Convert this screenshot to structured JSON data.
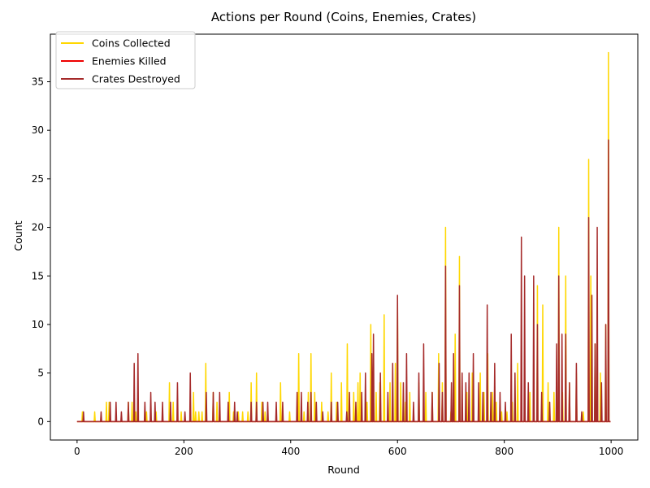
{
  "chart_data": {
    "type": "line",
    "title": "Actions per Round (Coins, Enemies, Crates)",
    "xlabel": "Round",
    "ylabel": "Count",
    "xlim": [
      -50,
      1050
    ],
    "ylim": [
      -1.9,
      39.9
    ],
    "xticks": [
      0,
      200,
      400,
      600,
      800,
      1000
    ],
    "yticks": [
      0,
      5,
      10,
      15,
      20,
      25,
      30,
      35
    ],
    "grid": false,
    "legend": "top-left",
    "series": [
      {
        "name": "Coins Collected",
        "color": "#ffd700",
        "spikes": [
          [
            10,
            1
          ],
          [
            33,
            1
          ],
          [
            55,
            2
          ],
          [
            60,
            2
          ],
          [
            96,
            2
          ],
          [
            103,
            2
          ],
          [
            110,
            1
          ],
          [
            130,
            1
          ],
          [
            148,
            1
          ],
          [
            173,
            4
          ],
          [
            180,
            2
          ],
          [
            195,
            1
          ],
          [
            218,
            3
          ],
          [
            222,
            1
          ],
          [
            228,
            1
          ],
          [
            234,
            1
          ],
          [
            241,
            6
          ],
          [
            255,
            3
          ],
          [
            262,
            2
          ],
          [
            285,
            3
          ],
          [
            293,
            1
          ],
          [
            302,
            1
          ],
          [
            310,
            1
          ],
          [
            320,
            1
          ],
          [
            326,
            4
          ],
          [
            336,
            5
          ],
          [
            346,
            2
          ],
          [
            352,
            1
          ],
          [
            381,
            4
          ],
          [
            398,
            1
          ],
          [
            415,
            7
          ],
          [
            425,
            1
          ],
          [
            433,
            3
          ],
          [
            438,
            7
          ],
          [
            445,
            3
          ],
          [
            458,
            2
          ],
          [
            470,
            1
          ],
          [
            476,
            5
          ],
          [
            486,
            2
          ],
          [
            495,
            4
          ],
          [
            506,
            8
          ],
          [
            518,
            3
          ],
          [
            526,
            4
          ],
          [
            530,
            5
          ],
          [
            543,
            2
          ],
          [
            550,
            10
          ],
          [
            560,
            3
          ],
          [
            567,
            4
          ],
          [
            575,
            11
          ],
          [
            586,
            4
          ],
          [
            596,
            6
          ],
          [
            600,
            12
          ],
          [
            606,
            4
          ],
          [
            615,
            2
          ],
          [
            623,
            3
          ],
          [
            640,
            4
          ],
          [
            653,
            3
          ],
          [
            665,
            3
          ],
          [
            677,
            7
          ],
          [
            684,
            4
          ],
          [
            690,
            20
          ],
          [
            700,
            1
          ],
          [
            708,
            9
          ],
          [
            716,
            17
          ],
          [
            730,
            3
          ],
          [
            740,
            5
          ],
          [
            755,
            5
          ],
          [
            762,
            3
          ],
          [
            769,
            7
          ],
          [
            778,
            3
          ],
          [
            785,
            2
          ],
          [
            795,
            1
          ],
          [
            805,
            1
          ],
          [
            815,
            2
          ],
          [
            825,
            6
          ],
          [
            838,
            2
          ],
          [
            848,
            3
          ],
          [
            855,
            3
          ],
          [
            862,
            14
          ],
          [
            872,
            12
          ],
          [
            882,
            4
          ],
          [
            893,
            3
          ],
          [
            902,
            20
          ],
          [
            909,
            3
          ],
          [
            915,
            15
          ],
          [
            922,
            4
          ],
          [
            935,
            5
          ],
          [
            948,
            1
          ],
          [
            958,
            27
          ],
          [
            962,
            15
          ],
          [
            970,
            8
          ],
          [
            974,
            10
          ],
          [
            980,
            5
          ],
          [
            990,
            10
          ],
          [
            995,
            38
          ]
        ]
      },
      {
        "name": "Enemies Killed",
        "color": "#ee0000",
        "spikes": []
      },
      {
        "name": "Crates Destroyed",
        "color": "#a52a2a",
        "spikes": [
          [
            12,
            1
          ],
          [
            45,
            1
          ],
          [
            62,
            2
          ],
          [
            73,
            2
          ],
          [
            83,
            1
          ],
          [
            96,
            2
          ],
          [
            107,
            6
          ],
          [
            114,
            7
          ],
          [
            127,
            2
          ],
          [
            138,
            3
          ],
          [
            146,
            2
          ],
          [
            160,
            2
          ],
          [
            175,
            2
          ],
          [
            188,
            4
          ],
          [
            202,
            1
          ],
          [
            212,
            5
          ],
          [
            242,
            3
          ],
          [
            255,
            3
          ],
          [
            267,
            3
          ],
          [
            283,
            2
          ],
          [
            295,
            2
          ],
          [
            300,
            1
          ],
          [
            326,
            2
          ],
          [
            336,
            2
          ],
          [
            348,
            2
          ],
          [
            357,
            2
          ],
          [
            373,
            2
          ],
          [
            385,
            2
          ],
          [
            412,
            3
          ],
          [
            420,
            3
          ],
          [
            432,
            2
          ],
          [
            438,
            3
          ],
          [
            448,
            2
          ],
          [
            460,
            1
          ],
          [
            476,
            2
          ],
          [
            488,
            2
          ],
          [
            505,
            1
          ],
          [
            510,
            3
          ],
          [
            522,
            2
          ],
          [
            533,
            3
          ],
          [
            540,
            5
          ],
          [
            552,
            7
          ],
          [
            555,
            9
          ],
          [
            568,
            5
          ],
          [
            582,
            3
          ],
          [
            591,
            6
          ],
          [
            600,
            13
          ],
          [
            611,
            4
          ],
          [
            617,
            7
          ],
          [
            630,
            2
          ],
          [
            640,
            5
          ],
          [
            649,
            8
          ],
          [
            665,
            3
          ],
          [
            678,
            6
          ],
          [
            684,
            3
          ],
          [
            690,
            16
          ],
          [
            701,
            4
          ],
          [
            705,
            7
          ],
          [
            716,
            14
          ],
          [
            721,
            5
          ],
          [
            728,
            4
          ],
          [
            734,
            5
          ],
          [
            742,
            7
          ],
          [
            752,
            4
          ],
          [
            760,
            3
          ],
          [
            768,
            12
          ],
          [
            775,
            3
          ],
          [
            782,
            6
          ],
          [
            792,
            3
          ],
          [
            802,
            2
          ],
          [
            813,
            9
          ],
          [
            820,
            5
          ],
          [
            832,
            19
          ],
          [
            838,
            15
          ],
          [
            845,
            4
          ],
          [
            855,
            15
          ],
          [
            862,
            10
          ],
          [
            870,
            3
          ],
          [
            885,
            2
          ],
          [
            898,
            8
          ],
          [
            902,
            15
          ],
          [
            908,
            9
          ],
          [
            915,
            9
          ],
          [
            922,
            4
          ],
          [
            935,
            6
          ],
          [
            945,
            1
          ],
          [
            958,
            21
          ],
          [
            964,
            13
          ],
          [
            970,
            8
          ],
          [
            974,
            20
          ],
          [
            982,
            4
          ],
          [
            990,
            10
          ],
          [
            995,
            29
          ]
        ]
      }
    ]
  }
}
